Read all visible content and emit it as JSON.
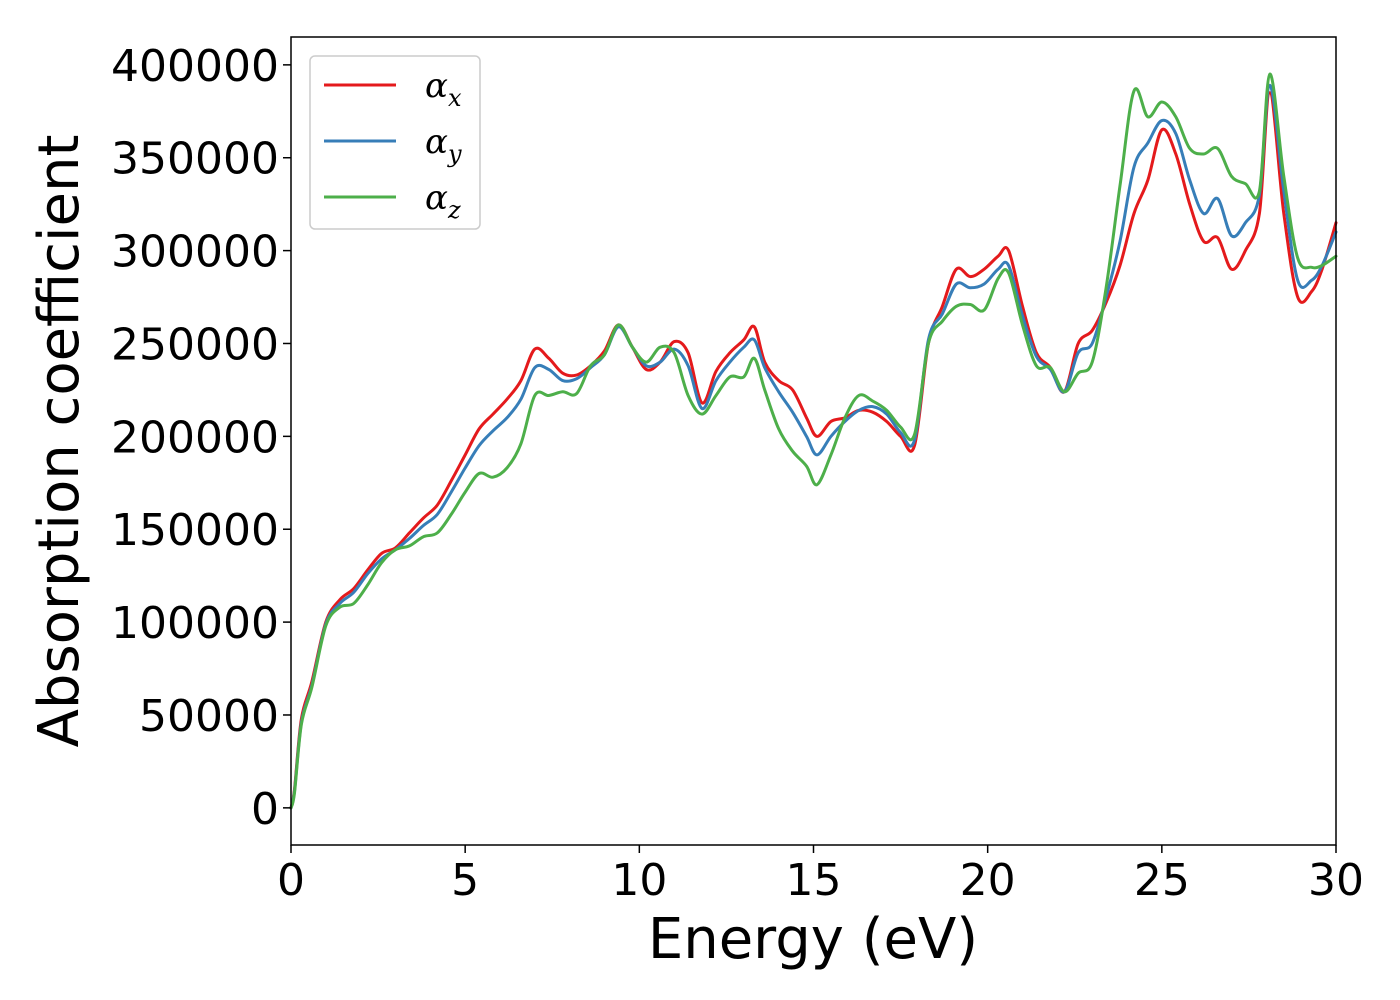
{
  "chart_data": {
    "type": "line",
    "title": "",
    "xlabel": "Energy (eV)",
    "ylabel": "Absorption coefficient",
    "xlim": [
      0,
      30
    ],
    "ylim": [
      -20000,
      415000
    ],
    "xticks": [
      0,
      5,
      10,
      15,
      20,
      25,
      30
    ],
    "xtick_labels": [
      "0",
      "5",
      "10",
      "15",
      "20",
      "25",
      "30"
    ],
    "yticks": [
      0,
      50000,
      100000,
      150000,
      200000,
      250000,
      300000,
      350000,
      400000
    ],
    "ytick_labels": [
      "0",
      "50000",
      "100000",
      "150000",
      "200000",
      "250000",
      "300000",
      "350000",
      "400000"
    ],
    "grid": false,
    "legend_position": "top-left",
    "x": [
      0,
      0.1,
      0.3,
      0.6,
      1.0,
      1.4,
      1.8,
      2.2,
      2.6,
      3.0,
      3.4,
      3.8,
      4.2,
      4.6,
      5.0,
      5.4,
      5.8,
      6.2,
      6.6,
      7.0,
      7.4,
      7.8,
      8.2,
      8.6,
      9.0,
      9.4,
      9.8,
      10.2,
      10.6,
      11.0,
      11.4,
      11.8,
      12.2,
      12.6,
      13.0,
      13.3,
      13.6,
      14.0,
      14.4,
      14.8,
      15.1,
      15.5,
      15.9,
      16.3,
      16.7,
      17.1,
      17.5,
      17.9,
      18.3,
      18.7,
      19.1,
      19.5,
      19.9,
      20.3,
      20.6,
      21.0,
      21.4,
      21.8,
      22.2,
      22.6,
      23.0,
      23.4,
      23.8,
      24.2,
      24.6,
      25.0,
      25.4,
      25.8,
      26.2,
      26.6,
      27.0,
      27.4,
      27.8,
      28.1,
      28.5,
      28.9,
      29.3,
      29.6,
      30.0
    ],
    "series": [
      {
        "name": "α_x",
        "color": "#e41a1c",
        "values": [
          0,
          10000,
          48000,
          68000,
          100000,
          112000,
          118000,
          128000,
          137000,
          140000,
          148000,
          156000,
          163000,
          176000,
          190000,
          204000,
          212000,
          220000,
          230000,
          247000,
          242000,
          234000,
          233000,
          238000,
          246000,
          260000,
          248000,
          236000,
          240000,
          251000,
          245000,
          218000,
          235000,
          245000,
          252000,
          259000,
          240000,
          230000,
          225000,
          210000,
          200000,
          208000,
          210000,
          214000,
          213000,
          208000,
          200000,
          195000,
          250000,
          270000,
          290000,
          286000,
          290000,
          297000,
          300000,
          270000,
          245000,
          237000,
          224000,
          250000,
          257000,
          272000,
          292000,
          320000,
          338000,
          365000,
          352000,
          325000,
          305000,
          307000,
          290000,
          300000,
          320000,
          385000,
          320000,
          275000,
          278000,
          290000,
          315000
        ]
      },
      {
        "name": "α_y",
        "color": "#377eb8",
        "values": [
          0,
          9000,
          46000,
          66000,
          99000,
          110000,
          116000,
          126000,
          134000,
          139000,
          145000,
          152000,
          158000,
          170000,
          183000,
          195000,
          203000,
          210000,
          220000,
          237000,
          236000,
          230000,
          231000,
          237000,
          244000,
          259000,
          248000,
          238000,
          240000,
          247000,
          238000,
          215000,
          230000,
          240000,
          248000,
          252000,
          237000,
          224000,
          213000,
          200000,
          190000,
          200000,
          208000,
          214000,
          216000,
          212000,
          202000,
          198000,
          252000,
          266000,
          282000,
          280000,
          282000,
          290000,
          292000,
          265000,
          243000,
          236000,
          224000,
          245000,
          250000,
          275000,
          305000,
          345000,
          358000,
          370000,
          363000,
          338000,
          320000,
          328000,
          308000,
          315000,
          330000,
          389000,
          332000,
          284000,
          284000,
          292000,
          310000
        ]
      },
      {
        "name": "α_z",
        "color": "#4daf4a",
        "values": [
          0,
          8000,
          45000,
          65000,
          98000,
          108000,
          110000,
          120000,
          132000,
          139000,
          141000,
          146000,
          148000,
          158000,
          170000,
          180000,
          178000,
          183000,
          196000,
          222000,
          222000,
          224000,
          223000,
          238000,
          244000,
          260000,
          248000,
          240000,
          248000,
          245000,
          222000,
          212000,
          222000,
          232000,
          232000,
          242000,
          225000,
          204000,
          192000,
          184000,
          174000,
          190000,
          210000,
          222000,
          219000,
          214000,
          205000,
          201000,
          250000,
          262000,
          270000,
          271000,
          268000,
          285000,
          288000,
          260000,
          238000,
          237000,
          224000,
          234000,
          240000,
          280000,
          335000,
          386000,
          372000,
          380000,
          372000,
          355000,
          352000,
          355000,
          340000,
          336000,
          332000,
          395000,
          340000,
          296000,
          291000,
          292000,
          297000
        ]
      }
    ],
    "legend": [
      {
        "base": "α",
        "sub": "x"
      },
      {
        "base": "α",
        "sub": "y"
      },
      {
        "base": "α",
        "sub": "z"
      }
    ]
  }
}
